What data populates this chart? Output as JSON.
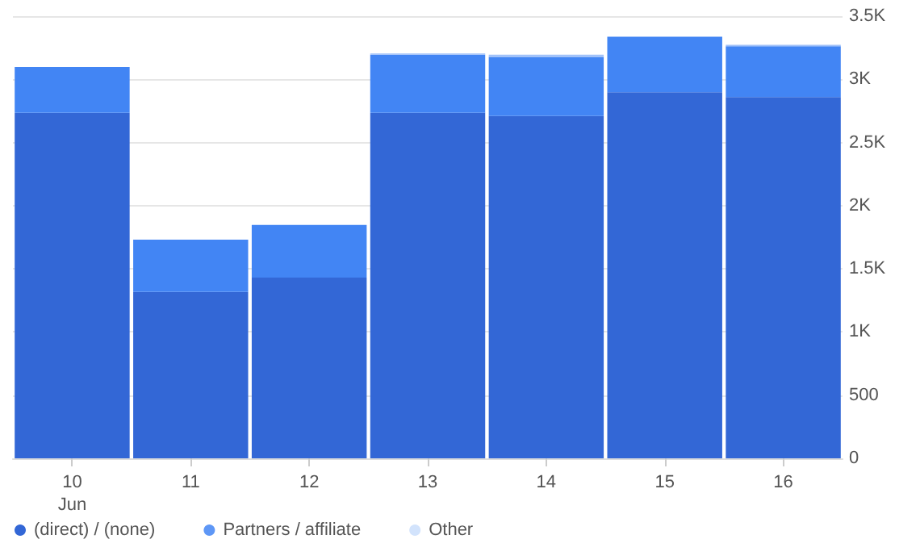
{
  "chart_data": {
    "type": "bar",
    "stacked": true,
    "categories": [
      "10\nJun",
      "11",
      "12",
      "13",
      "14",
      "15",
      "16"
    ],
    "series": [
      {
        "name": "(direct) / (none)",
        "color": "#3367d6",
        "values": [
          2735,
          1317,
          1430,
          2735,
          2710,
          2898,
          2860
        ]
      },
      {
        "color": "#4285f4",
        "values": [
          363,
          414,
          418,
          460,
          468,
          439,
          402
        ]
      },
      {
        "name": "Partners / affiliate",
        "color": "#5e97f6",
        "values": [
          0,
          0,
          0,
          0,
          0,
          0,
          0
        ]
      },
      {
        "color": "#a1c2fa",
        "values": [
          0,
          0,
          0,
          10,
          17,
          0,
          12
        ]
      },
      {
        "name": "Other",
        "color": "#d2e3fc",
        "values": [
          0,
          0,
          0,
          0,
          0,
          0,
          0
        ]
      }
    ],
    "ylim": [
      0,
      3500
    ],
    "yticks": [
      0,
      500,
      {
        "value": 1000,
        "label": "1K"
      },
      {
        "value": 1500,
        "label": "1.5K"
      },
      {
        "value": 2000,
        "label": "2K"
      },
      {
        "value": 2500,
        "label": "2.5K"
      },
      {
        "value": 3000,
        "label": "3K"
      },
      {
        "value": 3500,
        "label": "3.5K"
      }
    ],
    "grid": "y",
    "legend": "bottom"
  }
}
